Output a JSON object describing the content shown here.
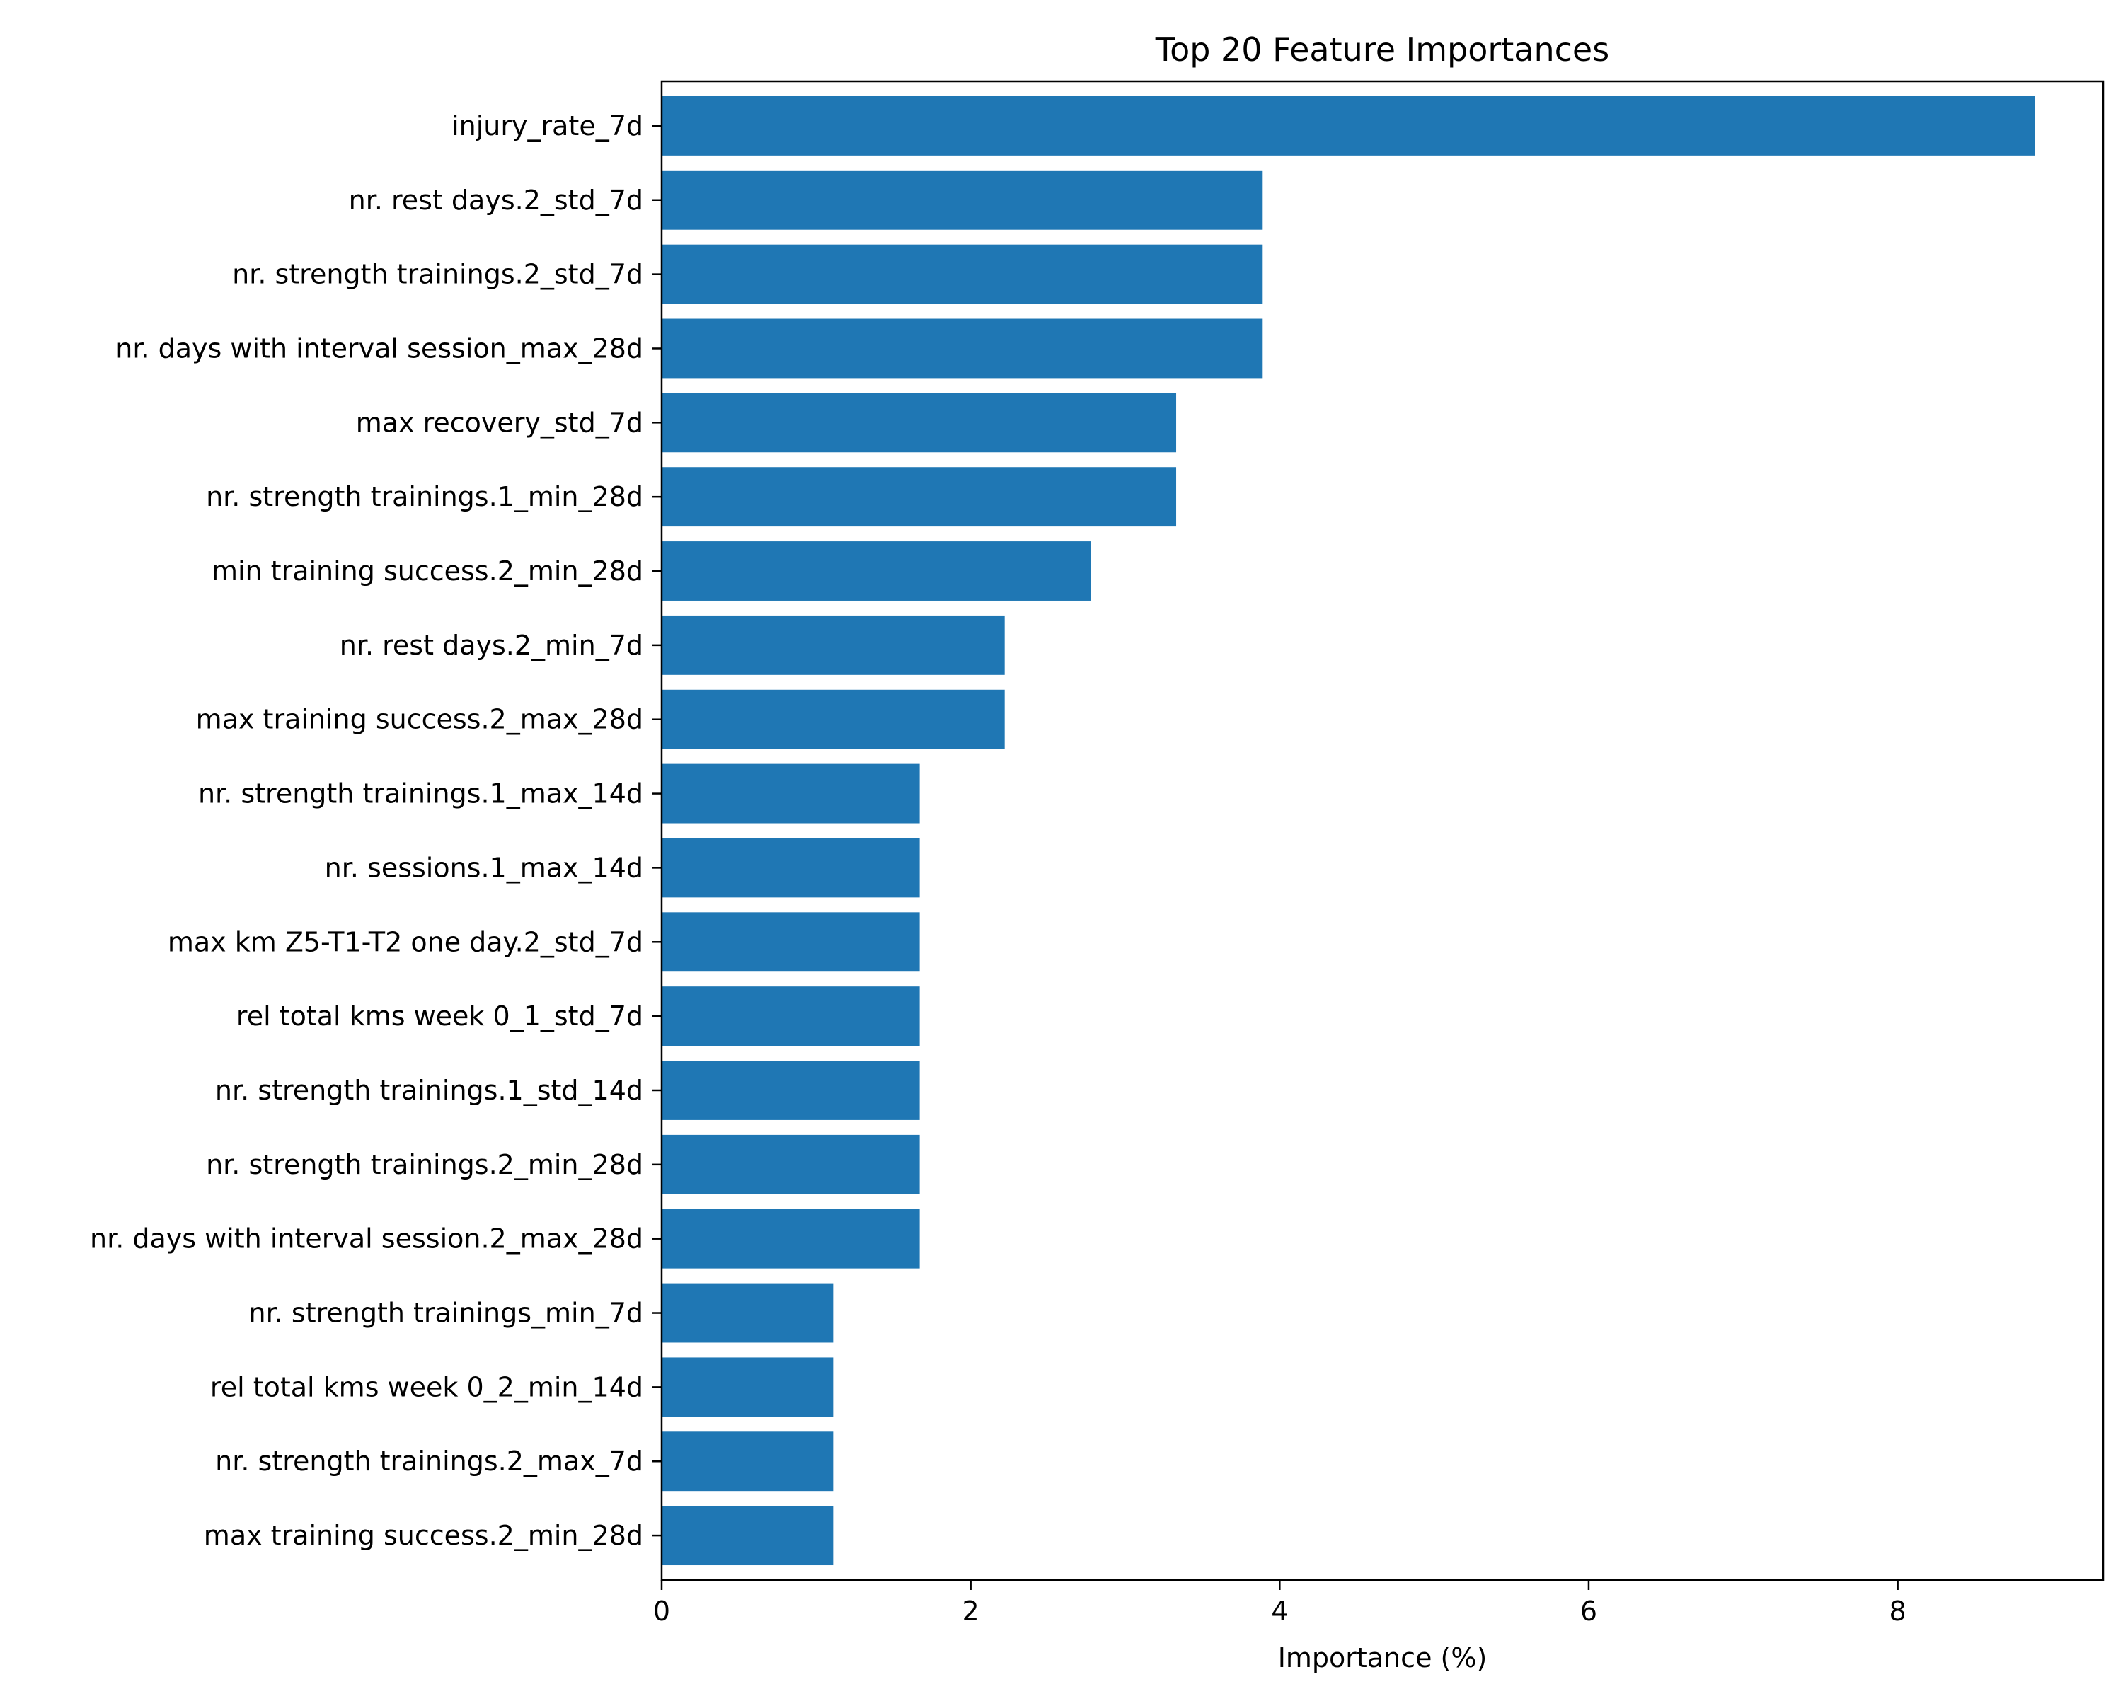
{
  "chart_data": {
    "type": "bar",
    "orientation": "horizontal",
    "title": "Top 20 Feature Importances",
    "xlabel": "Importance (%)",
    "ylabel": "",
    "xlim": [
      0,
      9.33
    ],
    "xticks": [
      0,
      2,
      4,
      6,
      8
    ],
    "grid": false,
    "legend": "none",
    "bar_color": "#1f77b4",
    "categories": [
      "injury_rate_7d",
      "nr. rest days.2_std_7d",
      "nr. strength trainings.2_std_7d",
      "nr. days with interval session_max_28d",
      "max recovery_std_7d",
      "nr. strength trainings.1_min_28d",
      "min training success.2_min_28d",
      "nr. rest days.2_min_7d",
      "max training success.2_max_28d",
      "nr. strength trainings.1_max_14d",
      "nr. sessions.1_max_14d",
      "max km Z5-T1-T2 one day.2_std_7d",
      "rel total kms week 0_1_std_7d",
      "nr. strength trainings.1_std_14d",
      "nr. strength trainings.2_min_28d",
      "nr. days with interval session.2_max_28d",
      "nr. strength trainings_min_7d",
      "rel total kms week 0_2_min_14d",
      "nr. strength trainings.2_max_7d",
      "max training success.2_min_28d"
    ],
    "values": [
      8.89,
      3.89,
      3.89,
      3.89,
      3.33,
      3.33,
      2.78,
      2.22,
      2.22,
      1.67,
      1.67,
      1.67,
      1.67,
      1.67,
      1.67,
      1.67,
      1.11,
      1.11,
      1.11,
      1.11
    ]
  }
}
